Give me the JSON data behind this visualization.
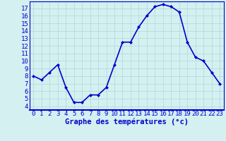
{
  "x": [
    0,
    1,
    2,
    3,
    4,
    5,
    6,
    7,
    8,
    9,
    10,
    11,
    12,
    13,
    14,
    15,
    16,
    17,
    18,
    19,
    20,
    21,
    22,
    23
  ],
  "y": [
    8,
    7.5,
    8.5,
    9.5,
    6.5,
    4.5,
    4.5,
    5.5,
    5.5,
    6.5,
    9.5,
    12.5,
    12.5,
    14.5,
    16,
    17.2,
    17.5,
    17.2,
    16.5,
    12.5,
    10.5,
    10,
    8.5,
    7
  ],
  "line_color": "#0000cc",
  "marker": "D",
  "marker_size": 2.5,
  "bg_color": "#d4f0f0",
  "grid_color": "#b0d8d8",
  "xlabel": "Graphe des températures (°c)",
  "ylim_min": 3.5,
  "ylim_max": 17.9,
  "xlim_min": -0.5,
  "xlim_max": 23.5,
  "yticks": [
    4,
    5,
    6,
    7,
    8,
    9,
    10,
    11,
    12,
    13,
    14,
    15,
    16,
    17
  ],
  "xticks": [
    0,
    1,
    2,
    3,
    4,
    5,
    6,
    7,
    8,
    9,
    10,
    11,
    12,
    13,
    14,
    15,
    16,
    17,
    18,
    19,
    20,
    21,
    22,
    23
  ],
  "tick_fontsize": 6.5,
  "xlabel_fontsize": 7.5,
  "linewidth": 1.2
}
